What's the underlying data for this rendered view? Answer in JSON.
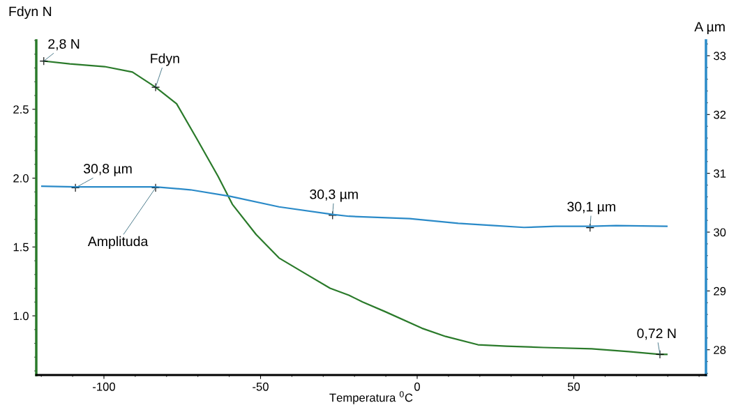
{
  "chart_data": {
    "type": "line",
    "xlabel": "Temperatura $^{0}$C",
    "ylabel": "Fdyn N",
    "y2label": "A µm",
    "xlim": [
      -121.6,
      92.2
    ],
    "xticks": [
      -100,
      -50,
      0,
      50
    ],
    "ylim": [
      0.57,
      3.0
    ],
    "yticks": [
      {
        "value": 1.0,
        "label": "1.0"
      },
      1.5,
      {
        "value": 2.0,
        "label": "2.0"
      },
      2.5
    ],
    "y2lim": [
      27.57,
      33.26
    ],
    "y2ticks": [
      28,
      29,
      30,
      31,
      32,
      33
    ],
    "grid": false,
    "marker": "none",
    "line_style": "solid",
    "series": [
      {
        "color": "#2a7a2a",
        "x": [
          -119.2,
          -110.9,
          -99.8,
          -90.9,
          -83.5,
          -76.8,
          -70.2,
          -63.5,
          -59.0,
          -51.4,
          -44.1,
          -36.7,
          -27.8,
          -21.8,
          -17.4,
          -10.2,
          1.5,
          9.1,
          19.4,
          28.5,
          40.3,
          55.7,
          67.5,
          77.5,
          79.7
        ],
        "values": [
          2.85,
          2.83,
          2.81,
          2.77,
          2.66,
          2.54,
          2.28,
          2.01,
          1.81,
          1.59,
          1.42,
          1.32,
          1.2,
          1.15,
          1.1,
          1.03,
          0.91,
          0.85,
          0.79,
          0.78,
          0.77,
          0.76,
          0.74,
          0.72,
          0.72
        ]
      },
      {
        "color": "#2a8ac8",
        "axis": "y2",
        "x": [
          -119.8,
          -109.1,
          -83.5,
          -72.4,
          -59.7,
          -44.1,
          -27.0,
          -21.8,
          -2.4,
          13.1,
          24.7,
          34.1,
          44.1,
          55.2,
          63.5,
          79.7
        ],
        "values": [
          30.78,
          30.77,
          30.77,
          30.72,
          30.61,
          30.43,
          30.3,
          30.27,
          30.23,
          30.15,
          30.11,
          30.08,
          30.1,
          30.1,
          30.11,
          30.1
        ]
      }
    ],
    "annotations": [
      {
        "text": "2,8 N",
        "x": -119.2,
        "y": 2.85
      },
      {
        "text": "Fdyn",
        "x": -83.5,
        "y": 2.66
      },
      {
        "text": "30,8 µm",
        "x": -109.1,
        "y": 1.93
      },
      {
        "text": "Amplituda",
        "x": -83.5,
        "y": 1.93
      },
      {
        "text": "30,3 µm",
        "x": -27.0,
        "y": 1.73
      },
      {
        "text": "30,1 µm",
        "x": 55.2,
        "y": 1.64
      },
      {
        "text": "0,72 N",
        "x": 77.5,
        "y": 0.72
      }
    ]
  }
}
